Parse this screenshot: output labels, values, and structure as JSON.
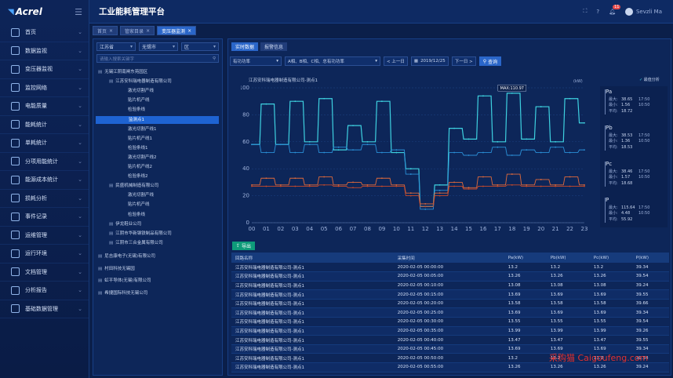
{
  "app": {
    "logo": "Acrel",
    "title": "工业能耗管理平台",
    "user": "Sevzli Ma",
    "notif_count": "11"
  },
  "sidebar": {
    "items": [
      {
        "label": "首页"
      },
      {
        "label": "数据监视"
      },
      {
        "label": "变压器监视"
      },
      {
        "label": "监控网络"
      },
      {
        "label": "电能质量"
      },
      {
        "label": "能耗统计"
      },
      {
        "label": "单耗统计"
      },
      {
        "label": "分项用能统计"
      },
      {
        "label": "能源成本统计"
      },
      {
        "label": "损耗分析"
      },
      {
        "label": "事件记录"
      },
      {
        "label": "运维管理"
      },
      {
        "label": "运行环境"
      },
      {
        "label": "文档管理"
      },
      {
        "label": "分析报告"
      },
      {
        "label": "基础数据管理"
      }
    ]
  },
  "tabs": [
    {
      "label": "首页"
    },
    {
      "label": "管家目录"
    },
    {
      "label": "变压器监测"
    }
  ],
  "tree": {
    "province": "江苏省",
    "city": "无锡市",
    "district": "区",
    "search_placeholder": "请输入搜索关键字",
    "nodes": [
      {
        "label": "无锡江阴南闸东苑园区",
        "lvl": 0
      },
      {
        "label": "江苏安科瑞电器制造有限公司",
        "lvl": 1
      },
      {
        "label": "激光切割产线",
        "lvl": 2
      },
      {
        "label": "贴片机产线",
        "lvl": 2
      },
      {
        "label": "检验条线",
        "lvl": 2
      },
      {
        "label": "监测点1",
        "lvl": 3,
        "hl": true
      },
      {
        "label": "激光切割产线1",
        "lvl": 2
      },
      {
        "label": "贴片机产线1",
        "lvl": 2
      },
      {
        "label": "检验条线1",
        "lvl": 2
      },
      {
        "label": "激光切割产线2",
        "lvl": 2
      },
      {
        "label": "贴片机产线2",
        "lvl": 2
      },
      {
        "label": "检验条线2",
        "lvl": 2
      },
      {
        "label": "民盛机械制造有限公司",
        "lvl": 1
      },
      {
        "label": "激光切割产线",
        "lvl": 2
      },
      {
        "label": "贴片机产线",
        "lvl": 2
      },
      {
        "label": "检验条线",
        "lvl": 2
      },
      {
        "label": "伊龙鞋业公司",
        "lvl": 1
      },
      {
        "label": "江阴市华新钢铁制品有限公司",
        "lvl": 1
      },
      {
        "label": "江阴市三合金属有限公司",
        "lvl": 1
      },
      {
        "label": "尼吉康电子(无锡)有限公司",
        "lvl": 0
      },
      {
        "label": "村田科技无锡园",
        "lvl": 0
      },
      {
        "label": "虹平导体(无锡)有限公司",
        "lvl": 0
      },
      {
        "label": "希捷国际科技无锡公司",
        "lvl": 0
      }
    ]
  },
  "main": {
    "subtabs": [
      {
        "label": "实时数据"
      },
      {
        "label": "报警信息"
      }
    ],
    "filter": {
      "metric": "有功功率",
      "phase": "A相、B相、C相、总有功功率",
      "prev": "< 上一日",
      "date": "2019/12/25",
      "next": "下一日 >",
      "query": "查询"
    },
    "chart_title": "江苏安科瑞电器制造有限公司-测点1",
    "unit": "(kW)",
    "legend": "最值分析",
    "max_tag": "MAX:110.97",
    "export": "导出"
  },
  "stats": [
    {
      "name": "Pa",
      "max_label": "最大:",
      "max": "38.65",
      "max_t": "17:50",
      "min_label": "最小:",
      "min": "1.56",
      "min_t": "10:50",
      "avg_label": "平均:",
      "avg": "18.72"
    },
    {
      "name": "Pb",
      "max_label": "最大:",
      "max": "38.53",
      "max_t": "17:50",
      "min_label": "最小:",
      "min": "1.36",
      "min_t": "10:50",
      "avg_label": "平均:",
      "avg": "18.53"
    },
    {
      "name": "Pc",
      "max_label": "最大:",
      "max": "38.46",
      "max_t": "17:50",
      "min_label": "最小:",
      "min": "1.57",
      "min_t": "10:50",
      "avg_label": "平均:",
      "avg": "18.68"
    },
    {
      "name": "P",
      "max_label": "最大:",
      "max": "115.64",
      "max_t": "17:50",
      "min_label": "最小:",
      "min": "4.48",
      "min_t": "10:50",
      "avg_label": "平均:",
      "avg": "55.92"
    }
  ],
  "table": {
    "headers": [
      "回路名称",
      "采集时间",
      "Pa(kW)",
      "Pb(kW)",
      "Pc(kW)",
      "P(kW)"
    ],
    "rows": [
      [
        "江苏安科瑞电器制造有限公司-测点1",
        "2020-02-05   00:00:00",
        "13.2",
        "13.2",
        "13.2",
        "39.34"
      ],
      [
        "江苏安科瑞电器制造有限公司-测点1",
        "2020-02-05   00:05:00",
        "13.26",
        "13.26",
        "13.26",
        "39.54"
      ],
      [
        "江苏安科瑞电器制造有限公司-测点1",
        "2020-02-05   00:10:00",
        "13.08",
        "13.08",
        "13.08",
        "39.24"
      ],
      [
        "江苏安科瑞电器制造有限公司-测点1",
        "2020-02-05   00:15:00",
        "13.69",
        "13.69",
        "13.69",
        "39.55"
      ],
      [
        "江苏安科瑞电器制造有限公司-测点1",
        "2020-02-05   00:20:00",
        "13.58",
        "13.58",
        "13.58",
        "39.66"
      ],
      [
        "江苏安科瑞电器制造有限公司-测点1",
        "2020-02-05   00:25:00",
        "13.69",
        "13.69",
        "13.69",
        "39.34"
      ],
      [
        "江苏安科瑞电器制造有限公司-测点1",
        "2020-02-05   00:30:00",
        "13.55",
        "13.55",
        "13.55",
        "39.54"
      ],
      [
        "江苏安科瑞电器制造有限公司-测点1",
        "2020-02-05   00:35:00",
        "13.99",
        "13.99",
        "13.99",
        "39.26"
      ],
      [
        "江苏安科瑞电器制造有限公司-测点1",
        "2020-02-05   00:40:00",
        "13.47",
        "13.47",
        "13.47",
        "39.55"
      ],
      [
        "江苏安科瑞电器制造有限公司-测点1",
        "2020-02-05   00:45:00",
        "13.69",
        "13.69",
        "13.69",
        "39.34"
      ],
      [
        "江苏安科瑞电器制造有限公司-测点1",
        "2020-02-05   00:50:00",
        "13.2",
        "13.2",
        "13.2",
        "39.54"
      ],
      [
        "江苏安科瑞电器制造有限公司-测点1",
        "2020-02-05   00:55:00",
        "13.26",
        "13.26",
        "13.26",
        "39.24"
      ]
    ]
  },
  "watermark": "采购猫 Caigoufeng.com",
  "chart_data": {
    "type": "line",
    "title": "江苏安科瑞电器制造有限公司-测点1",
    "ylabel": "(kW)",
    "ylim": [
      0,
      100
    ],
    "yticks": [
      0,
      20,
      40,
      60,
      80,
      100
    ],
    "categories": [
      "00",
      "01",
      "02",
      "03",
      "04",
      "05",
      "06",
      "07",
      "08",
      "09",
      "10",
      "11",
      "12",
      "13",
      "14",
      "15",
      "16",
      "17",
      "18",
      "19",
      "20",
      "21",
      "22",
      "23"
    ],
    "series": [
      {
        "color": "#3ed1e0",
        "values": [
          58,
          88,
          58,
          90,
          60,
          92,
          54,
          72,
          60,
          90,
          52,
          40,
          12,
          28,
          70,
          62,
          94,
          60,
          96,
          62,
          86,
          60,
          92,
          74
        ]
      },
      {
        "color": "#2a8fd6",
        "values": [
          58,
          52,
          58,
          52,
          58,
          52,
          56,
          54,
          58,
          52,
          54,
          36,
          10,
          24,
          52,
          50,
          52,
          56,
          50,
          54,
          52,
          56,
          52,
          54
        ]
      },
      {
        "color": "#e06a3b",
        "values": [
          28,
          33,
          28,
          33,
          28,
          34,
          28,
          30,
          28,
          33,
          28,
          22,
          14,
          22,
          30,
          26,
          34,
          28,
          36,
          28,
          32,
          28,
          34,
          28
        ]
      },
      {
        "color": "#c94a2a",
        "values": [
          27,
          27,
          27,
          27,
          27,
          28,
          27,
          26,
          27,
          27,
          27,
          20,
          12,
          20,
          27,
          25,
          27,
          27,
          28,
          27,
          27,
          27,
          27,
          27
        ]
      }
    ]
  }
}
